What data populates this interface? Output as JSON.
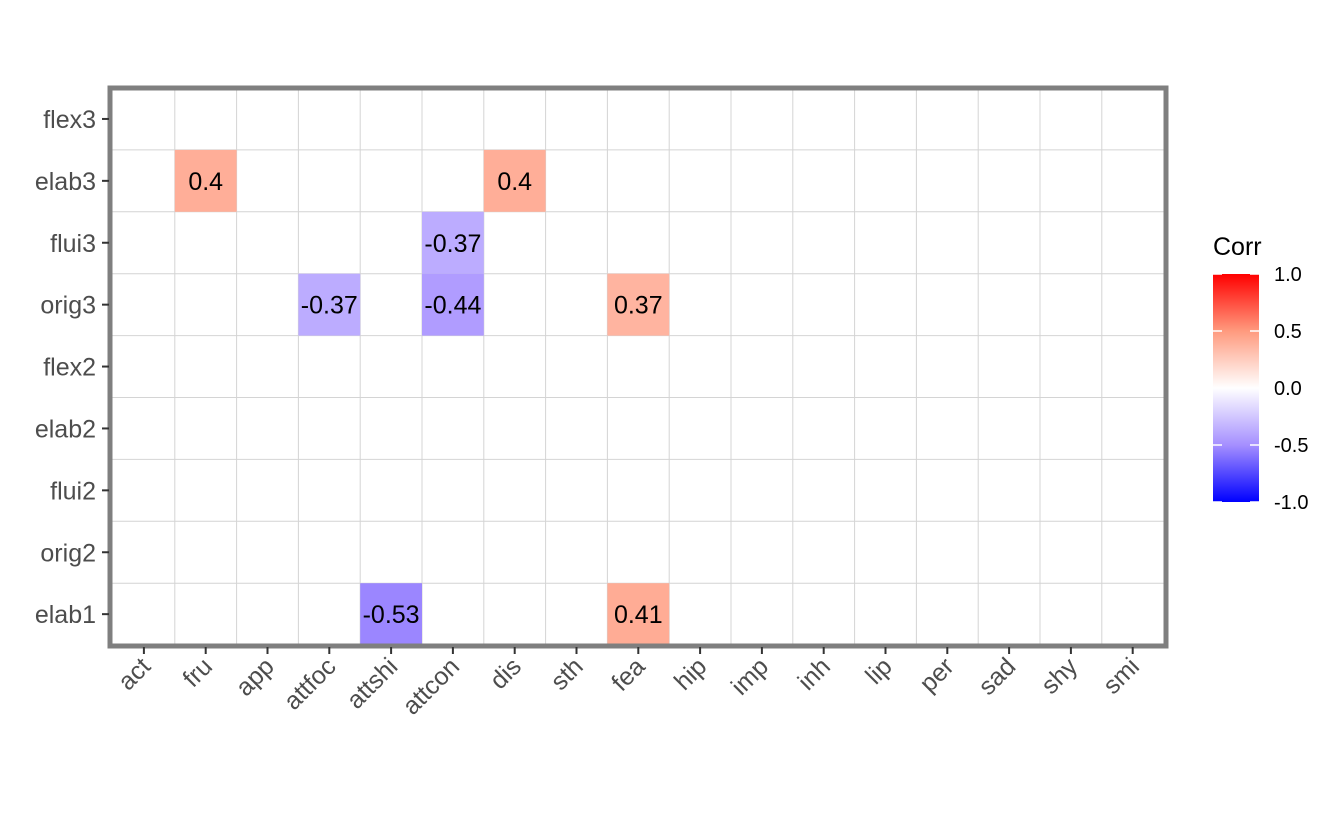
{
  "chart_data": {
    "type": "heatmap",
    "x_categories": [
      "act",
      "fru",
      "app",
      "attfoc",
      "attshi",
      "attcon",
      "dis",
      "sth",
      "fea",
      "hip",
      "imp",
      "inh",
      "lip",
      "per",
      "sad",
      "shy",
      "smi"
    ],
    "y_categories": [
      "flex3",
      "elab3",
      "flui3",
      "orig3",
      "flex2",
      "elab2",
      "flui2",
      "orig2",
      "elab1"
    ],
    "cells": [
      {
        "x": "fru",
        "y": "elab3",
        "value": 0.4,
        "label": "0.4"
      },
      {
        "x": "dis",
        "y": "elab3",
        "value": 0.4,
        "label": "0.4"
      },
      {
        "x": "attcon",
        "y": "flui3",
        "value": -0.37,
        "label": "-0.37"
      },
      {
        "x": "attfoc",
        "y": "orig3",
        "value": -0.37,
        "label": "-0.37"
      },
      {
        "x": "attcon",
        "y": "orig3",
        "value": -0.44,
        "label": "-0.44"
      },
      {
        "x": "fea",
        "y": "orig3",
        "value": 0.37,
        "label": "0.37"
      },
      {
        "x": "attshi",
        "y": "elab1",
        "value": -0.53,
        "label": "-0.53"
      },
      {
        "x": "fea",
        "y": "elab1",
        "value": 0.41,
        "label": "0.41"
      }
    ],
    "legend": {
      "title": "Corr",
      "ticks": [
        1.0,
        0.5,
        0.0,
        -0.5,
        -1.0
      ],
      "tick_labels": [
        "1.0",
        "0.5",
        "0.0",
        "-0.5",
        "-1.0"
      ],
      "range": [
        -1,
        1
      ],
      "colors": {
        "low": "#0000ff",
        "mid": "#ffffff",
        "high": "#ff0000"
      },
      "placement": "right"
    },
    "grid": true
  }
}
